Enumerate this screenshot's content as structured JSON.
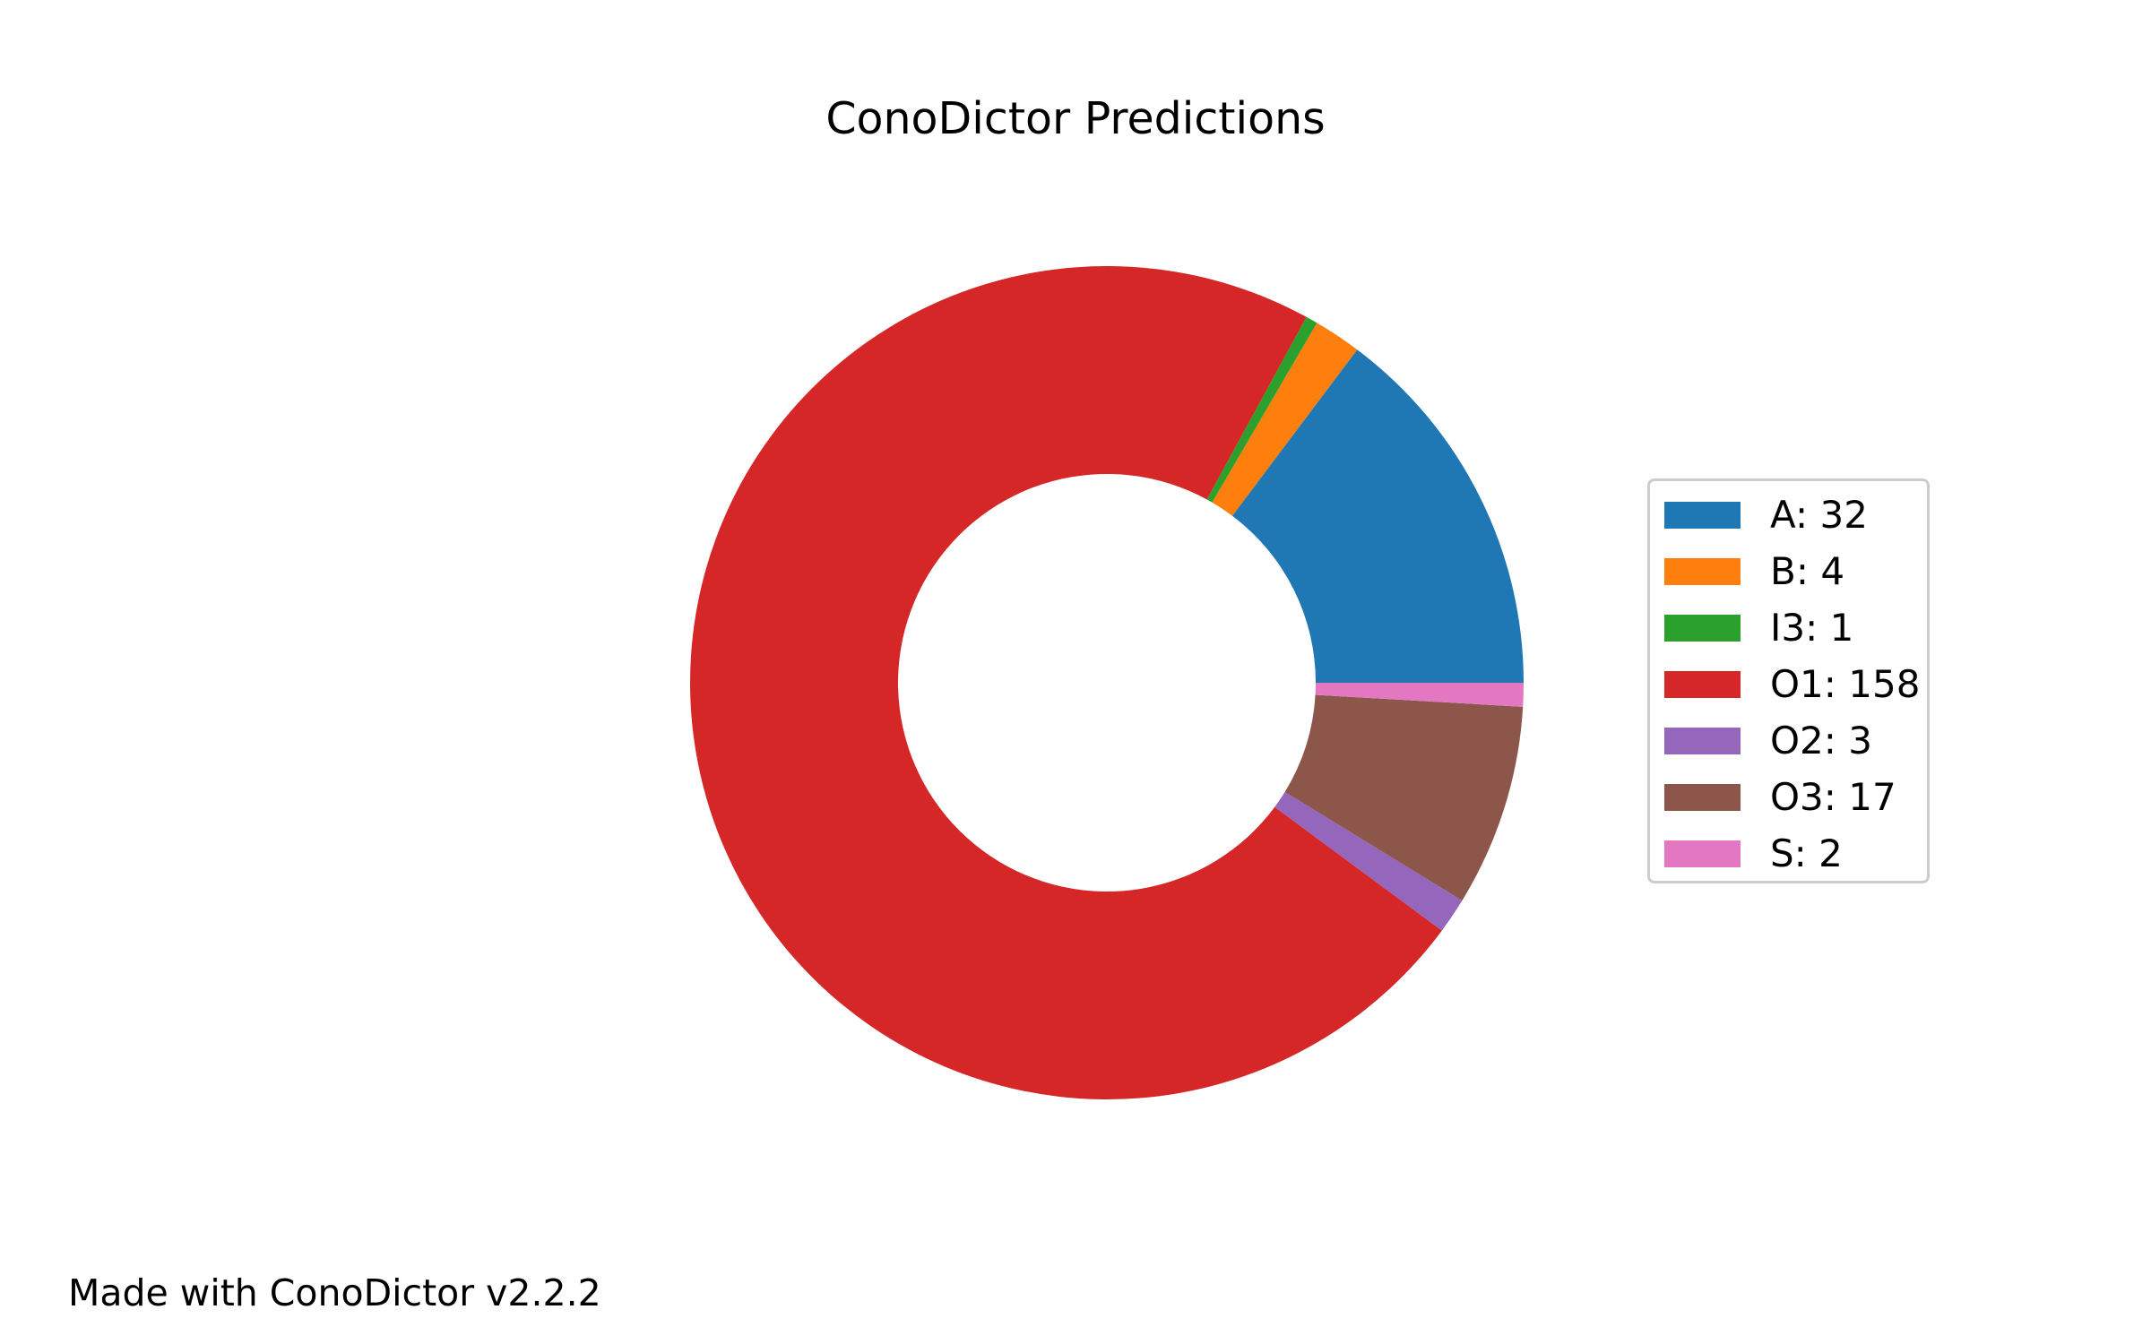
{
  "chart_data": {
    "type": "pie",
    "style": "donut",
    "title": "ConoDictor Predictions",
    "slices": [
      {
        "label": "A",
        "value": 32,
        "color": "#1f77b4"
      },
      {
        "label": "B",
        "value": 4,
        "color": "#ff7f0e"
      },
      {
        "label": "I3",
        "value": 1,
        "color": "#2ca02c"
      },
      {
        "label": "O1",
        "value": 158,
        "color": "#d62728"
      },
      {
        "label": "O2",
        "value": 3,
        "color": "#9467bd"
      },
      {
        "label": "O3",
        "value": 17,
        "color": "#8c564b"
      },
      {
        "label": "S",
        "value": 2,
        "color": "#e377c2"
      }
    ],
    "legend_labels": [
      "A: 32",
      "B: 4",
      "I3: 1",
      "O1: 158",
      "O2: 3",
      "O3: 17",
      "S: 2"
    ],
    "legend_placement": "right"
  },
  "footer": {
    "note": "Made with ConoDictor v2.2.2"
  }
}
